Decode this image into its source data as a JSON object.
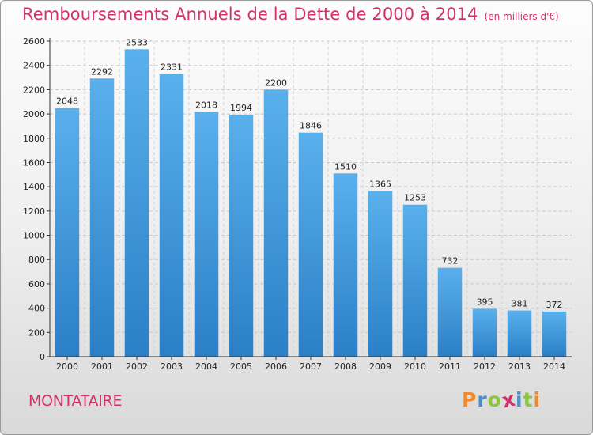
{
  "header": {
    "title": "Remboursements Annuels de la Dette de 2000 à 2014",
    "unit": "(en milliers d'€)"
  },
  "footer": {
    "commune": "MONTATAIRE",
    "logo_letters": [
      "P",
      "r",
      "o",
      "x",
      "i",
      "t",
      "i"
    ],
    "logo_colors": [
      "#f0892b",
      "#4a8fd0",
      "#8cc63e",
      "#d0316b",
      "#4a8fd0",
      "#8cc63e",
      "#f0892b"
    ]
  },
  "chart_data": {
    "type": "bar",
    "title": "Remboursements Annuels de la Dette de 2000 à 2014",
    "subtitle": "(en milliers d'€)",
    "categories": [
      "2000",
      "2001",
      "2002",
      "2003",
      "2004",
      "2005",
      "2006",
      "2007",
      "2008",
      "2009",
      "2010",
      "2011",
      "2012",
      "2013",
      "2014"
    ],
    "values": [
      2048,
      2292,
      2533,
      2331,
      2018,
      1994,
      2200,
      1846,
      1510,
      1365,
      1253,
      732,
      395,
      381,
      372
    ],
    "yticks": [
      "0",
      "200",
      "400",
      "600",
      "800",
      "1000",
      "1200",
      "1400",
      "1600",
      "1800",
      "2000",
      "2200",
      "2400",
      "2600"
    ],
    "ylim": [
      0,
      2600
    ],
    "grid": true,
    "bar_color": "#3f98dd"
  }
}
